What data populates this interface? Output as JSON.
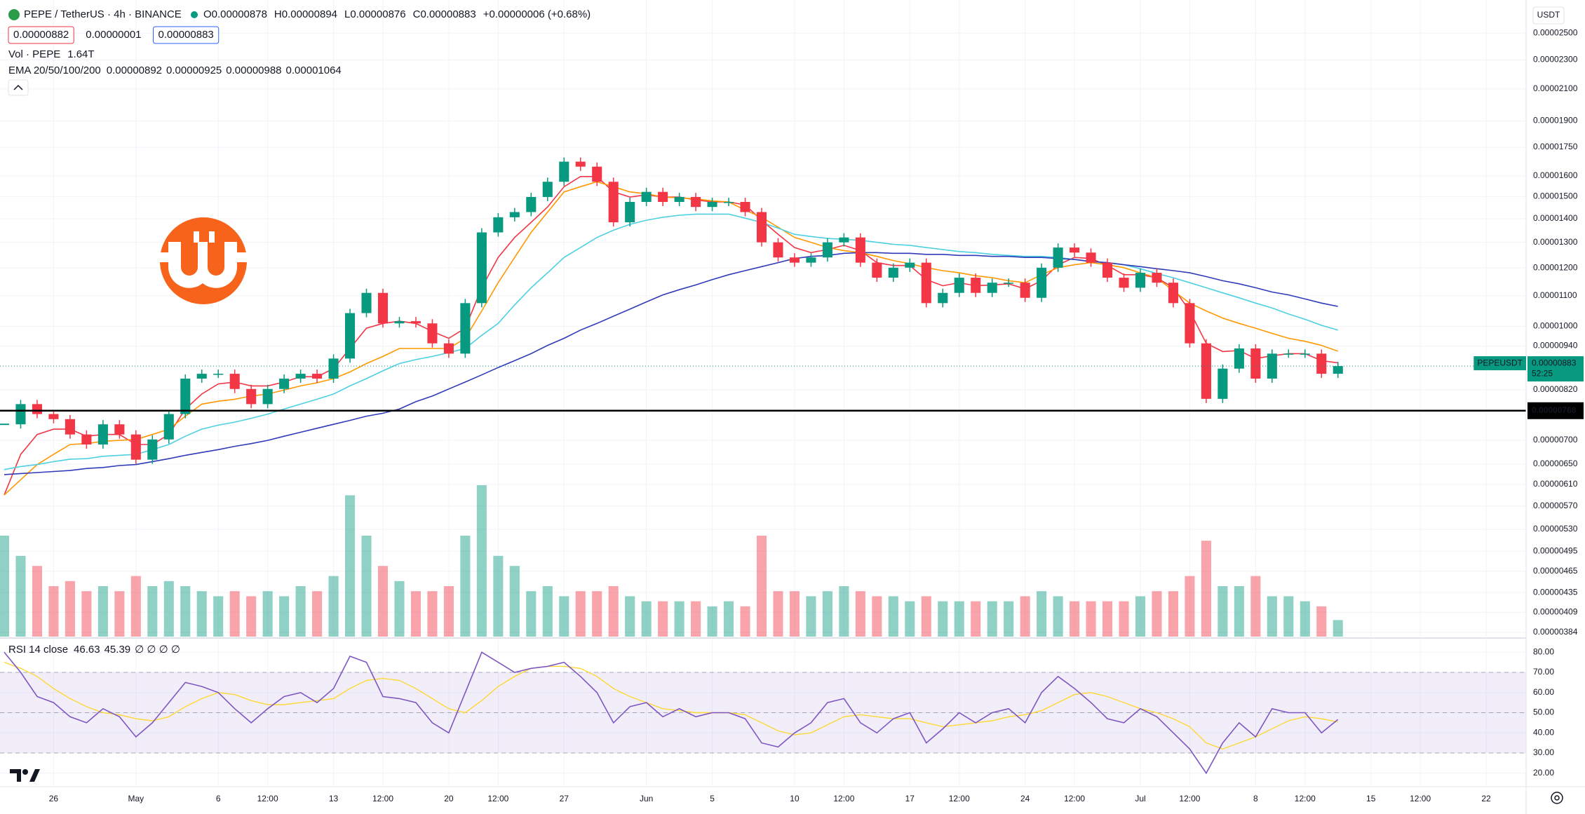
{
  "chart_data": {
    "type": "candlestick",
    "title": "PEPE / TetherUS · 4h · BINANCE",
    "ohlc_legend": [
      "O0.00000878",
      "H0.00000894",
      "L0.00000876",
      "C0.00000883",
      "+0.00000006 (+0.68%)"
    ],
    "buttons": [
      "0.00000882",
      "0.00000001",
      "0.00000883"
    ],
    "currency": "USDT",
    "log_scale": true,
    "grid": true,
    "up_color": "#089981",
    "down_color": "#f23645",
    "ylim": [
      3.79e-06,
      2.773e-05
    ],
    "yticks": [
      {
        "value": 2.5e-05,
        "label": "0.00002500"
      },
      {
        "value": 2.3e-05,
        "label": "0.00002300"
      },
      {
        "value": 2.1e-05,
        "label": "0.00002100"
      },
      {
        "value": 1.9e-05,
        "label": "0.00001900"
      },
      {
        "value": 1.75e-05,
        "label": "0.00001750"
      },
      {
        "value": 1.6e-05,
        "label": "0.00001600"
      },
      {
        "value": 1.5e-05,
        "label": "0.00001500"
      },
      {
        "value": 1.4e-05,
        "label": "0.00001400"
      },
      {
        "value": 1.3e-05,
        "label": "0.00001300"
      },
      {
        "value": 1.2e-05,
        "label": "0.00001200"
      },
      {
        "value": 1.1e-05,
        "label": "0.00001100"
      },
      {
        "value": 1e-05,
        "label": "0.00001000"
      },
      {
        "value": 9.4e-06,
        "label": "0.00000940"
      },
      {
        "value": 8.2e-06,
        "label": "0.00000820"
      },
      {
        "value": 7e-06,
        "label": "0.00000700"
      },
      {
        "value": 6.5e-06,
        "label": "0.00000650"
      },
      {
        "value": 6.1e-06,
        "label": "0.00000610"
      },
      {
        "value": 5.7e-06,
        "label": "0.00000570"
      },
      {
        "value": 5.3e-06,
        "label": "0.00000530"
      },
      {
        "value": 4.95e-06,
        "label": "0.00000495"
      },
      {
        "value": 4.65e-06,
        "label": "0.00000465"
      },
      {
        "value": 4.35e-06,
        "label": "0.00000435"
      },
      {
        "value": 4.09e-06,
        "label": "0.00000409"
      },
      {
        "value": 3.84e-06,
        "label": "0.00000384"
      }
    ],
    "categories": [
      null,
      null,
      null,
      "26",
      null,
      null,
      null,
      null,
      "May",
      null,
      null,
      null,
      null,
      "6",
      null,
      null,
      "12:00",
      null,
      null,
      null,
      "13",
      null,
      null,
      "12:00",
      null,
      null,
      null,
      "20",
      null,
      null,
      "12:00",
      null,
      null,
      null,
      "27",
      null,
      null,
      null,
      null,
      "Jun",
      null,
      null,
      null,
      "5",
      null,
      null,
      null,
      null,
      "10",
      null,
      null,
      "12:00",
      null,
      null,
      null,
      "17",
      null,
      null,
      "12:00",
      null,
      null,
      null,
      "24",
      null,
      null,
      "12:00",
      null,
      null,
      null,
      "Jul",
      null,
      null,
      "12:00",
      null,
      null,
      null,
      "8",
      null,
      null,
      "12:00",
      null,
      null,
      null,
      "15",
      null,
      null,
      "12:00",
      null,
      null,
      null,
      "22",
      null,
      null
    ],
    "price": {
      "name": "PEPEUSDT",
      "value_label": "0.00000883",
      "countdown": "52:25",
      "values": [
        7.36e-06,
        7.84e-06,
        7.6e-06,
        7.48e-06,
        7.13e-06,
        6.91e-06,
        7.36e-06,
        7.13e-06,
        6.59e-06,
        7.02e-06,
        7.6e-06,
        8.49e-06,
        8.62e-06,
        8.62e-06,
        8.22e-06,
        7.84e-06,
        8.22e-06,
        8.49e-06,
        8.62e-06,
        8.49e-06,
        9.04e-06,
        1.042e-05,
        1.11e-05,
        1.009e-05,
        1.016e-05,
        1.009e-05,
        9.48e-06,
        9.18e-06,
        1.075e-05,
        1.341e-05,
        1.406e-05,
        1.429e-05,
        1.498e-05,
        1.571e-05,
        1.673e-05,
        1.647e-05,
        1.571e-05,
        1.384e-05,
        1.475e-05,
        1.522e-05,
        1.475e-05,
        1.498e-05,
        1.452e-05,
        1.475e-05,
        1.475e-05,
        1.429e-05,
        1.3e-05,
        1.24e-05,
        1.22e-05,
        1.24e-05,
        1.3e-05,
        1.32e-05,
        1.22e-05,
        1.164e-05,
        1.201e-05,
        1.22e-05,
        1.075e-05,
        1.11e-05,
        1.164e-05,
        1.11e-05,
        1.146e-05,
        1.146e-05,
        1.093e-05,
        1.201e-05,
        1.279e-05,
        1.259e-05,
        1.22e-05,
        1.164e-05,
        1.128e-05,
        1.182e-05,
        1.146e-05,
        1.075e-05,
        9.48e-06,
        7.97e-06,
        8.76e-06,
        9.33e-06,
        8.49e-06,
        9.18e-06,
        9.18e-06,
        9.18e-06,
        8.62e-06,
        8.83e-06,
        null,
        null,
        null,
        null,
        null,
        null,
        null,
        null,
        null,
        null,
        null
      ]
    },
    "hline": {
      "value": 7.68e-06,
      "label": "0.00000768",
      "color": "#000000"
    },
    "ema": {
      "label": "EMA 20/50/100/200",
      "lines": [
        {
          "color": "#f23645",
          "value_label": "0.00000892",
          "values": [
            5.9e-06,
            6.7e-06,
            7.13e-06,
            7.25e-06,
            7.25e-06,
            7.09e-06,
            7.13e-06,
            7.13e-06,
            6.91e-06,
            6.91e-06,
            7.13e-06,
            7.72e-06,
            8.09e-06,
            8.35e-06,
            8.4e-06,
            8.3e-06,
            8.3e-06,
            8.4e-06,
            8.54e-06,
            8.54e-06,
            8.76e-06,
            9.33e-06,
            9.94e-06,
            1.009e-05,
            1.016e-05,
            1.009e-05,
            9.84e-06,
            9.63e-06,
            9.94e-06,
            1.128e-05,
            1.24e-05,
            1.32e-05,
            1.384e-05,
            1.452e-05,
            1.547e-05,
            1.597e-05,
            1.597e-05,
            1.522e-05,
            1.498e-05,
            1.508e-05,
            1.498e-05,
            1.498e-05,
            1.484e-05,
            1.475e-05,
            1.475e-05,
            1.461e-05,
            1.393e-05,
            1.333e-05,
            1.279e-05,
            1.259e-05,
            1.271e-05,
            1.288e-05,
            1.267e-05,
            1.22e-05,
            1.209e-05,
            1.209e-05,
            1.157e-05,
            1.135e-05,
            1.146e-05,
            1.135e-05,
            1.138e-05,
            1.142e-05,
            1.124e-05,
            1.153e-05,
            1.212e-05,
            1.24e-05,
            1.236e-05,
            1.209e-05,
            1.175e-05,
            1.175e-05,
            1.164e-05,
            1.128e-05,
            1.049e-05,
            9.48e-06,
            9.24e-06,
            9.27e-06,
            9.04e-06,
            9.12e-06,
            9.18e-06,
            9.18e-06,
            8.98e-06,
            8.92e-06,
            null,
            null,
            null,
            null,
            null,
            null,
            null,
            null,
            null,
            null,
            null
          ]
        },
        {
          "color": "#ff9800",
          "value_label": "0.00000925",
          "values": [
            5.9e-06,
            6.19e-06,
            6.49e-06,
            6.7e-06,
            6.91e-06,
            6.93e-06,
            6.98e-06,
            7e-06,
            7.02e-06,
            7.13e-06,
            7.25e-06,
            7.55e-06,
            7.84e-06,
            7.91e-06,
            7.96e-06,
            8.04e-06,
            8.09e-06,
            8.19e-06,
            8.3e-06,
            8.38e-06,
            8.49e-06,
            8.67e-06,
            8.9e-06,
            9.1e-06,
            9.33e-06,
            9.33e-06,
            9.33e-06,
            9.33e-06,
            9.63e-06,
            1.049e-05,
            1.146e-05,
            1.24e-05,
            1.341e-05,
            1.429e-05,
            1.522e-05,
            1.547e-05,
            1.571e-05,
            1.547e-05,
            1.522e-05,
            1.513e-05,
            1.498e-05,
            1.494e-05,
            1.489e-05,
            1.48e-05,
            1.475e-05,
            1.438e-05,
            1.406e-05,
            1.363e-05,
            1.32e-05,
            1.3e-05,
            1.279e-05,
            1.267e-05,
            1.259e-05,
            1.244e-05,
            1.228e-05,
            1.216e-05,
            1.201e-05,
            1.19e-05,
            1.182e-05,
            1.171e-05,
            1.164e-05,
            1.153e-05,
            1.146e-05,
            1.175e-05,
            1.201e-05,
            1.212e-05,
            1.22e-05,
            1.212e-05,
            1.201e-05,
            1.182e-05,
            1.164e-05,
            1.117e-05,
            1.075e-05,
            1.049e-05,
            1.026e-05,
            1.009e-05,
            9.94e-06,
            9.78e-06,
            9.63e-06,
            9.54e-06,
            9.42e-06,
            9.25e-06,
            null,
            null,
            null,
            null,
            null,
            null,
            null,
            null,
            null,
            null,
            null
          ]
        },
        {
          "color": "#4dd0e1",
          "value_label": "0.00000988",
          "values": [
            6.39e-06,
            6.45e-06,
            6.49e-06,
            6.55e-06,
            6.6e-06,
            6.61e-06,
            6.66e-06,
            6.68e-06,
            6.7e-06,
            6.8e-06,
            6.91e-06,
            7.09e-06,
            7.25e-06,
            7.34e-06,
            7.41e-06,
            7.5e-06,
            7.6e-06,
            7.72e-06,
            7.84e-06,
            7.96e-06,
            8.09e-06,
            8.3e-06,
            8.49e-06,
            8.7e-06,
            8.9e-06,
            9.01e-06,
            9.1e-06,
            9.21e-06,
            9.33e-06,
            9.72e-06,
            1.009e-05,
            1.069e-05,
            1.128e-05,
            1.182e-05,
            1.24e-05,
            1.279e-05,
            1.32e-05,
            1.35e-05,
            1.375e-05,
            1.393e-05,
            1.406e-05,
            1.415e-05,
            1.42e-05,
            1.42e-05,
            1.42e-05,
            1.402e-05,
            1.384e-05,
            1.359e-05,
            1.333e-05,
            1.324e-05,
            1.316e-05,
            1.312e-05,
            1.308e-05,
            1.3e-05,
            1.292e-05,
            1.288e-05,
            1.279e-05,
            1.271e-05,
            1.263e-05,
            1.259e-05,
            1.252e-05,
            1.248e-05,
            1.244e-05,
            1.244e-05,
            1.24e-05,
            1.232e-05,
            1.224e-05,
            1.22e-05,
            1.212e-05,
            1.197e-05,
            1.179e-05,
            1.164e-05,
            1.146e-05,
            1.128e-05,
            1.11e-05,
            1.093e-05,
            1.075e-05,
            1.059e-05,
            1.039e-05,
            1.022e-05,
            1.003e-05,
            9.88e-06,
            null,
            null,
            null,
            null,
            null,
            null,
            null,
            null,
            null,
            null,
            null
          ]
        },
        {
          "color": "#2f3bb8",
          "value_label": "0.00001064",
          "values": [
            6.29e-06,
            6.31e-06,
            6.33e-06,
            6.35e-06,
            6.37e-06,
            6.41e-06,
            6.43e-06,
            6.47e-06,
            6.49e-06,
            6.55e-06,
            6.61e-06,
            6.68e-06,
            6.74e-06,
            6.8e-06,
            6.87e-06,
            6.93e-06,
            7e-06,
            7.09e-06,
            7.18e-06,
            7.27e-06,
            7.36e-06,
            7.45e-06,
            7.55e-06,
            7.62e-06,
            7.72e-06,
            7.9e-06,
            8.04e-06,
            8.22e-06,
            8.4e-06,
            8.59e-06,
            8.79e-06,
            8.98e-06,
            9.18e-06,
            9.42e-06,
            9.63e-06,
            9.88e-06,
            1.009e-05,
            1.032e-05,
            1.055e-05,
            1.079e-05,
            1.103e-05,
            1.121e-05,
            1.138e-05,
            1.157e-05,
            1.175e-05,
            1.19e-05,
            1.205e-05,
            1.22e-05,
            1.236e-05,
            1.244e-05,
            1.248e-05,
            1.256e-05,
            1.259e-05,
            1.259e-05,
            1.256e-05,
            1.256e-05,
            1.252e-05,
            1.252e-05,
            1.248e-05,
            1.248e-05,
            1.244e-05,
            1.244e-05,
            1.24e-05,
            1.24e-05,
            1.236e-05,
            1.232e-05,
            1.224e-05,
            1.22e-05,
            1.212e-05,
            1.205e-05,
            1.197e-05,
            1.19e-05,
            1.182e-05,
            1.168e-05,
            1.153e-05,
            1.142e-05,
            1.128e-05,
            1.113e-05,
            1.103e-05,
            1.089e-05,
            1.075e-05,
            1.064e-05,
            null,
            null,
            null,
            null,
            null,
            null,
            null,
            null,
            null,
            null,
            null
          ]
        }
      ]
    },
    "volume": {
      "name": "Vol · PEPE",
      "value_label": "1.64T",
      "values": [
        10.0,
        8.0,
        7.0,
        5.0,
        5.5,
        4.5,
        5.0,
        4.5,
        6.0,
        5.0,
        5.5,
        5.0,
        4.5,
        4.0,
        4.5,
        4.0,
        4.5,
        4.0,
        5.0,
        4.5,
        6.0,
        14.0,
        10.0,
        7.0,
        5.5,
        4.5,
        4.5,
        5.0,
        10.0,
        15.0,
        8.0,
        7.0,
        4.5,
        5.0,
        4.0,
        4.5,
        4.5,
        5.0,
        4.0,
        3.5,
        3.5,
        3.5,
        3.5,
        3.0,
        3.5,
        3.0,
        10.0,
        4.5,
        4.5,
        4.0,
        4.5,
        5.0,
        4.5,
        4.0,
        4.0,
        3.5,
        4.0,
        3.5,
        3.5,
        3.5,
        3.5,
        3.5,
        4.0,
        4.5,
        4.0,
        3.5,
        3.5,
        3.5,
        3.5,
        4.0,
        4.5,
        4.5,
        6.0,
        9.5,
        5.0,
        5.0,
        6.0,
        4.0,
        4.0,
        3.5,
        3.0,
        1.64,
        null,
        null,
        null,
        null,
        null,
        null,
        null,
        null,
        null,
        null,
        null
      ]
    },
    "rsi": {
      "label": "RSI 14 close",
      "value_label": "46.63",
      "ma_value_label": "45.39",
      "extra": "∅ ∅ ∅ ∅",
      "color": "#7e57c2",
      "ma_color": "#fdd835",
      "band_color": "#7e57c2",
      "ylim": [
        14,
        86
      ],
      "levels": [
        70,
        50,
        30
      ],
      "yticks": [
        {
          "value": 80,
          "label": "80.00"
        },
        {
          "value": 70,
          "label": "70.00"
        },
        {
          "value": 60,
          "label": "60.00"
        },
        {
          "value": 50,
          "label": "50.00"
        },
        {
          "value": 40,
          "label": "40.00"
        },
        {
          "value": 30,
          "label": "30.00"
        },
        {
          "value": 20,
          "label": "20.00"
        }
      ],
      "values": [
        80,
        70,
        58,
        55,
        48,
        45,
        52,
        48,
        38,
        45,
        55,
        65,
        63,
        60,
        52,
        45,
        52,
        58,
        60,
        55,
        62,
        78,
        75,
        58,
        57,
        55,
        45,
        40,
        60,
        80,
        75,
        70,
        72,
        73,
        75,
        68,
        60,
        45,
        53,
        55,
        48,
        52,
        48,
        50,
        50,
        47,
        35,
        33,
        40,
        45,
        55,
        57,
        45,
        40,
        47,
        50,
        35,
        42,
        50,
        45,
        50,
        52,
        45,
        60,
        68,
        62,
        55,
        47,
        45,
        52,
        48,
        40,
        32,
        20,
        35,
        45,
        38,
        52,
        50,
        50,
        40,
        46.63,
        null,
        null,
        null,
        null,
        null,
        null,
        null,
        null,
        null,
        null,
        null
      ],
      "ma_values": [
        75,
        72,
        68,
        62,
        57,
        53,
        50,
        49,
        47,
        46,
        48,
        53,
        57,
        60,
        59,
        56,
        54,
        54,
        55,
        56,
        57,
        62,
        66,
        67,
        66,
        62,
        57,
        52,
        50,
        56,
        63,
        68,
        72,
        73,
        73,
        72,
        68,
        62,
        58,
        55,
        52,
        51,
        50,
        50,
        50,
        49,
        45,
        41,
        39,
        40,
        44,
        48,
        49,
        48,
        47,
        47,
        45,
        43,
        44,
        45,
        46,
        48,
        49,
        51,
        55,
        59,
        60,
        58,
        55,
        52,
        50,
        47,
        43,
        35,
        32,
        35,
        38,
        42,
        46,
        48,
        47,
        45.39,
        null,
        null,
        null,
        null,
        null,
        null,
        null,
        null,
        null,
        null,
        null
      ]
    }
  }
}
